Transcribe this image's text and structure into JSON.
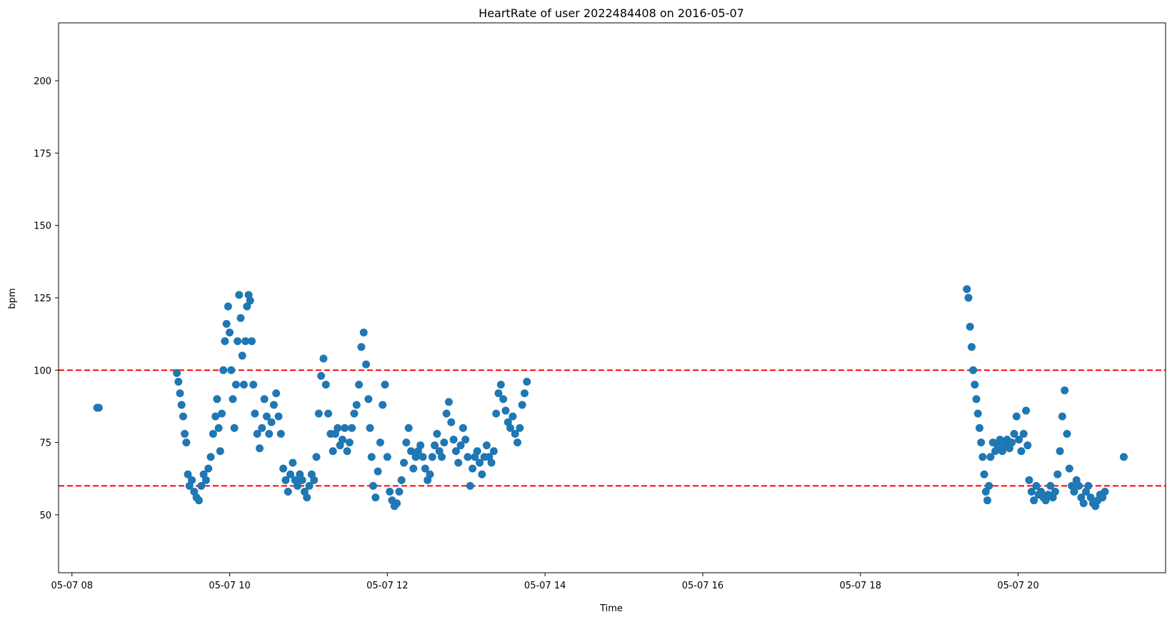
{
  "chart_data": {
    "type": "scatter",
    "title": "HeartRate of user 2022484408 on 2016-05-07",
    "xlabel": "Time",
    "ylabel": "bpm",
    "x_unit": "hour of day (2016-05-07)",
    "xlim": [
      7.83,
      21.87
    ],
    "ylim": [
      30,
      220
    ],
    "x_ticks": [
      {
        "value": 8,
        "label": "05-07 08"
      },
      {
        "value": 10,
        "label": "05-07 10"
      },
      {
        "value": 12,
        "label": "05-07 12"
      },
      {
        "value": 14,
        "label": "05-07 14"
      },
      {
        "value": 16,
        "label": "05-07 16"
      },
      {
        "value": 18,
        "label": "05-07 18"
      },
      {
        "value": 20,
        "label": "05-07 20"
      }
    ],
    "y_ticks": [
      {
        "value": 50,
        "label": "50"
      },
      {
        "value": 75,
        "label": "75"
      },
      {
        "value": 100,
        "label": "100"
      },
      {
        "value": 125,
        "label": "125"
      },
      {
        "value": 150,
        "label": "150"
      },
      {
        "value": 175,
        "label": "175"
      },
      {
        "value": 200,
        "label": "200"
      }
    ],
    "grid": false,
    "reference_lines": [
      {
        "y": 100,
        "color": "#ff0000",
        "style": "dashed"
      },
      {
        "y": 60,
        "color": "#ff0000",
        "style": "dashed"
      }
    ],
    "series": [
      {
        "color": "#1f77b4",
        "points": [
          [
            8.32,
            87
          ],
          [
            8.34,
            87
          ],
          [
            9.33,
            99
          ],
          [
            9.35,
            96
          ],
          [
            9.37,
            92
          ],
          [
            9.39,
            88
          ],
          [
            9.41,
            84
          ],
          [
            9.43,
            78
          ],
          [
            9.45,
            75
          ],
          [
            9.47,
            64
          ],
          [
            9.49,
            60
          ],
          [
            9.52,
            62
          ],
          [
            9.55,
            58
          ],
          [
            9.58,
            56
          ],
          [
            9.61,
            55
          ],
          [
            9.64,
            60
          ],
          [
            9.67,
            64
          ],
          [
            9.7,
            62
          ],
          [
            9.73,
            66
          ],
          [
            9.76,
            70
          ],
          [
            9.79,
            78
          ],
          [
            9.82,
            84
          ],
          [
            9.84,
            90
          ],
          [
            9.86,
            80
          ],
          [
            9.88,
            72
          ],
          [
            9.9,
            85
          ],
          [
            9.92,
            100
          ],
          [
            9.94,
            110
          ],
          [
            9.96,
            116
          ],
          [
            9.98,
            122
          ],
          [
            10.0,
            113
          ],
          [
            10.02,
            100
          ],
          [
            10.04,
            90
          ],
          [
            10.06,
            80
          ],
          [
            10.08,
            95
          ],
          [
            10.1,
            110
          ],
          [
            10.12,
            126
          ],
          [
            10.14,
            118
          ],
          [
            10.16,
            105
          ],
          [
            10.18,
            95
          ],
          [
            10.2,
            110
          ],
          [
            10.22,
            122
          ],
          [
            10.24,
            126
          ],
          [
            10.26,
            124
          ],
          [
            10.28,
            110
          ],
          [
            10.3,
            95
          ],
          [
            10.32,
            85
          ],
          [
            10.35,
            78
          ],
          [
            10.38,
            73
          ],
          [
            10.41,
            80
          ],
          [
            10.44,
            90
          ],
          [
            10.47,
            84
          ],
          [
            10.5,
            78
          ],
          [
            10.53,
            82
          ],
          [
            10.56,
            88
          ],
          [
            10.59,
            92
          ],
          [
            10.62,
            84
          ],
          [
            10.65,
            78
          ],
          [
            10.68,
            66
          ],
          [
            10.71,
            62
          ],
          [
            10.74,
            58
          ],
          [
            10.77,
            64
          ],
          [
            10.8,
            68
          ],
          [
            10.83,
            62
          ],
          [
            10.86,
            60
          ],
          [
            10.89,
            64
          ],
          [
            10.92,
            62
          ],
          [
            10.95,
            58
          ],
          [
            10.98,
            56
          ],
          [
            11.01,
            60
          ],
          [
            11.04,
            64
          ],
          [
            11.07,
            62
          ],
          [
            11.1,
            70
          ],
          [
            11.13,
            85
          ],
          [
            11.16,
            98
          ],
          [
            11.19,
            104
          ],
          [
            11.22,
            95
          ],
          [
            11.25,
            85
          ],
          [
            11.28,
            78
          ],
          [
            11.31,
            72
          ],
          [
            11.34,
            78
          ],
          [
            11.37,
            80
          ],
          [
            11.4,
            74
          ],
          [
            11.43,
            76
          ],
          [
            11.46,
            80
          ],
          [
            11.49,
            72
          ],
          [
            11.52,
            75
          ],
          [
            11.55,
            80
          ],
          [
            11.58,
            85
          ],
          [
            11.61,
            88
          ],
          [
            11.64,
            95
          ],
          [
            11.67,
            108
          ],
          [
            11.7,
            113
          ],
          [
            11.73,
            102
          ],
          [
            11.76,
            90
          ],
          [
            11.78,
            80
          ],
          [
            11.8,
            70
          ],
          [
            11.82,
            60
          ],
          [
            11.85,
            56
          ],
          [
            11.88,
            65
          ],
          [
            11.91,
            75
          ],
          [
            11.94,
            88
          ],
          [
            11.97,
            95
          ],
          [
            12.0,
            70
          ],
          [
            12.03,
            58
          ],
          [
            12.06,
            55
          ],
          [
            12.09,
            53
          ],
          [
            12.12,
            54
          ],
          [
            12.15,
            58
          ],
          [
            12.18,
            62
          ],
          [
            12.21,
            68
          ],
          [
            12.24,
            75
          ],
          [
            12.27,
            80
          ],
          [
            12.3,
            72
          ],
          [
            12.33,
            66
          ],
          [
            12.36,
            70
          ],
          [
            12.39,
            72
          ],
          [
            12.42,
            74
          ],
          [
            12.45,
            70
          ],
          [
            12.48,
            66
          ],
          [
            12.51,
            62
          ],
          [
            12.54,
            64
          ],
          [
            12.57,
            70
          ],
          [
            12.6,
            74
          ],
          [
            12.63,
            78
          ],
          [
            12.66,
            72
          ],
          [
            12.69,
            70
          ],
          [
            12.72,
            75
          ],
          [
            12.75,
            85
          ],
          [
            12.78,
            89
          ],
          [
            12.81,
            82
          ],
          [
            12.84,
            76
          ],
          [
            12.87,
            72
          ],
          [
            12.9,
            68
          ],
          [
            12.93,
            74
          ],
          [
            12.96,
            80
          ],
          [
            12.99,
            76
          ],
          [
            13.02,
            70
          ],
          [
            13.05,
            60
          ],
          [
            13.08,
            66
          ],
          [
            13.11,
            70
          ],
          [
            13.14,
            72
          ],
          [
            13.17,
            68
          ],
          [
            13.2,
            64
          ],
          [
            13.23,
            70
          ],
          [
            13.26,
            74
          ],
          [
            13.29,
            70
          ],
          [
            13.32,
            68
          ],
          [
            13.35,
            72
          ],
          [
            13.38,
            85
          ],
          [
            13.41,
            92
          ],
          [
            13.44,
            95
          ],
          [
            13.47,
            90
          ],
          [
            13.5,
            86
          ],
          [
            13.53,
            82
          ],
          [
            13.56,
            80
          ],
          [
            13.59,
            84
          ],
          [
            13.62,
            78
          ],
          [
            13.65,
            75
          ],
          [
            13.68,
            80
          ],
          [
            13.71,
            88
          ],
          [
            13.74,
            92
          ],
          [
            13.77,
            96
          ],
          [
            19.35,
            128
          ],
          [
            19.37,
            125
          ],
          [
            19.39,
            115
          ],
          [
            19.41,
            108
          ],
          [
            19.43,
            100
          ],
          [
            19.45,
            95
          ],
          [
            19.47,
            90
          ],
          [
            19.49,
            85
          ],
          [
            19.51,
            80
          ],
          [
            19.53,
            75
          ],
          [
            19.55,
            70
          ],
          [
            19.57,
            64
          ],
          [
            19.59,
            58
          ],
          [
            19.61,
            55
          ],
          [
            19.63,
            60
          ],
          [
            19.65,
            70
          ],
          [
            19.68,
            75
          ],
          [
            19.71,
            72
          ],
          [
            19.74,
            74
          ],
          [
            19.77,
            76
          ],
          [
            19.8,
            72
          ],
          [
            19.83,
            74
          ],
          [
            19.86,
            76
          ],
          [
            19.89,
            73
          ],
          [
            19.92,
            75
          ],
          [
            19.95,
            78
          ],
          [
            19.98,
            84
          ],
          [
            20.01,
            76
          ],
          [
            20.04,
            72
          ],
          [
            20.07,
            78
          ],
          [
            20.1,
            86
          ],
          [
            20.12,
            74
          ],
          [
            20.14,
            62
          ],
          [
            20.17,
            58
          ],
          [
            20.2,
            55
          ],
          [
            20.23,
            60
          ],
          [
            20.26,
            57
          ],
          [
            20.29,
            58
          ],
          [
            20.32,
            56
          ],
          [
            20.35,
            55
          ],
          [
            20.38,
            57
          ],
          [
            20.41,
            60
          ],
          [
            20.44,
            56
          ],
          [
            20.47,
            58
          ],
          [
            20.5,
            64
          ],
          [
            20.53,
            72
          ],
          [
            20.56,
            84
          ],
          [
            20.59,
            93
          ],
          [
            20.62,
            78
          ],
          [
            20.65,
            66
          ],
          [
            20.68,
            60
          ],
          [
            20.71,
            58
          ],
          [
            20.74,
            62
          ],
          [
            20.77,
            60
          ],
          [
            20.8,
            56
          ],
          [
            20.83,
            54
          ],
          [
            20.86,
            58
          ],
          [
            20.89,
            60
          ],
          [
            20.92,
            56
          ],
          [
            20.95,
            54
          ],
          [
            20.98,
            53
          ],
          [
            21.01,
            55
          ],
          [
            21.04,
            57
          ],
          [
            21.07,
            56
          ],
          [
            21.1,
            58
          ],
          [
            21.34,
            70
          ]
        ]
      }
    ]
  }
}
